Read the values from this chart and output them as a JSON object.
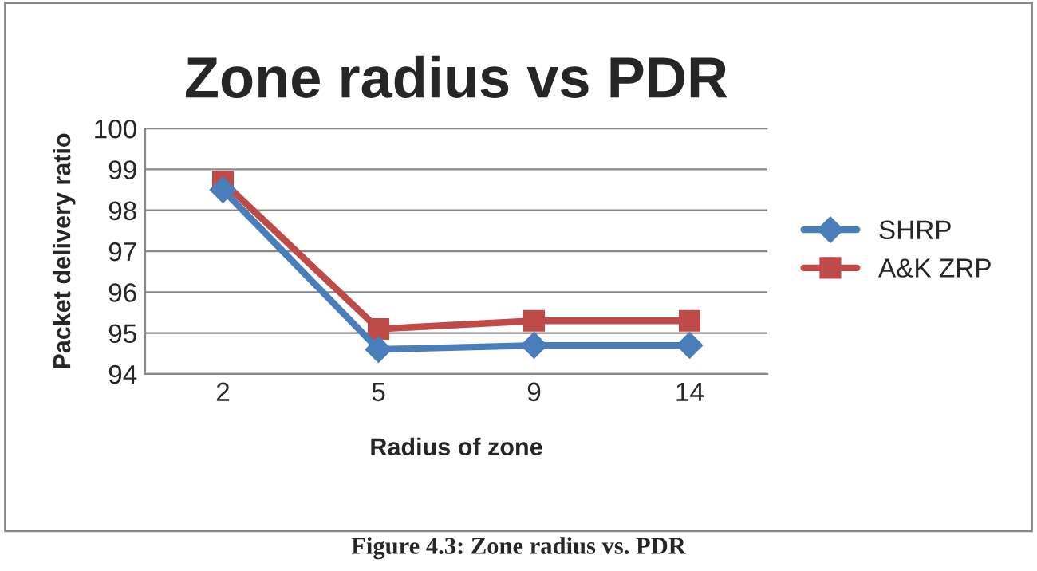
{
  "chart_data": {
    "type": "line",
    "title": "Zone radius vs PDR",
    "xlabel": "Radius of zone",
    "ylabel": "Packet delivery ratio",
    "categories": [
      "2",
      "5",
      "9",
      "14"
    ],
    "series": [
      {
        "name": "SHRP",
        "color": "#4a7ebb",
        "marker": "diamond",
        "values": [
          98.5,
          94.6,
          94.7,
          94.7
        ]
      },
      {
        "name": "A&K ZRP",
        "color": "#be4b48",
        "marker": "square",
        "values": [
          98.7,
          95.1,
          95.3,
          95.3
        ]
      }
    ],
    "ylim": [
      94,
      100
    ],
    "yticks": [
      94,
      95,
      96,
      97,
      98,
      99,
      100
    ],
    "grid": "y",
    "legend": "right",
    "line_style": "solid",
    "annotations": [
      "Figure 4.3: Zone radius vs. PDR"
    ]
  }
}
